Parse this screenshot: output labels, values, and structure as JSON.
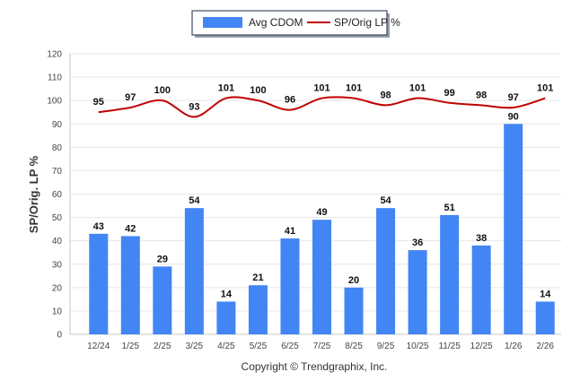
{
  "chart_data": {
    "type": "bar",
    "categories": [
      "12/24",
      "1/25",
      "2/25",
      "3/25",
      "4/25",
      "5/25",
      "6/25",
      "7/25",
      "8/25",
      "9/25",
      "10/25",
      "11/25",
      "12/25",
      "1/26",
      "2/26"
    ],
    "series": [
      {
        "name": "Avg CDOM",
        "kind": "bar",
        "color": "#4285f4",
        "values": [
          43,
          42,
          29,
          54,
          14,
          21,
          41,
          49,
          20,
          54,
          36,
          51,
          38,
          90,
          14
        ]
      },
      {
        "name": "SP/Orig LP %",
        "kind": "line",
        "color": "#c00000",
        "values": [
          95,
          97,
          100,
          93,
          101,
          100,
          96,
          101,
          101,
          98,
          101,
          99,
          98,
          97,
          101
        ]
      }
    ],
    "ylabel": "SP/Orig. LP %",
    "xlabel": "",
    "ylim": [
      0,
      120
    ],
    "yticks": [
      0,
      10,
      20,
      30,
      40,
      50,
      60,
      70,
      80,
      90,
      100,
      110,
      120
    ],
    "grid": true,
    "legend_position": "top-center"
  },
  "footer": {
    "copyright": "Copyright © Trendgraphix, Inc."
  }
}
